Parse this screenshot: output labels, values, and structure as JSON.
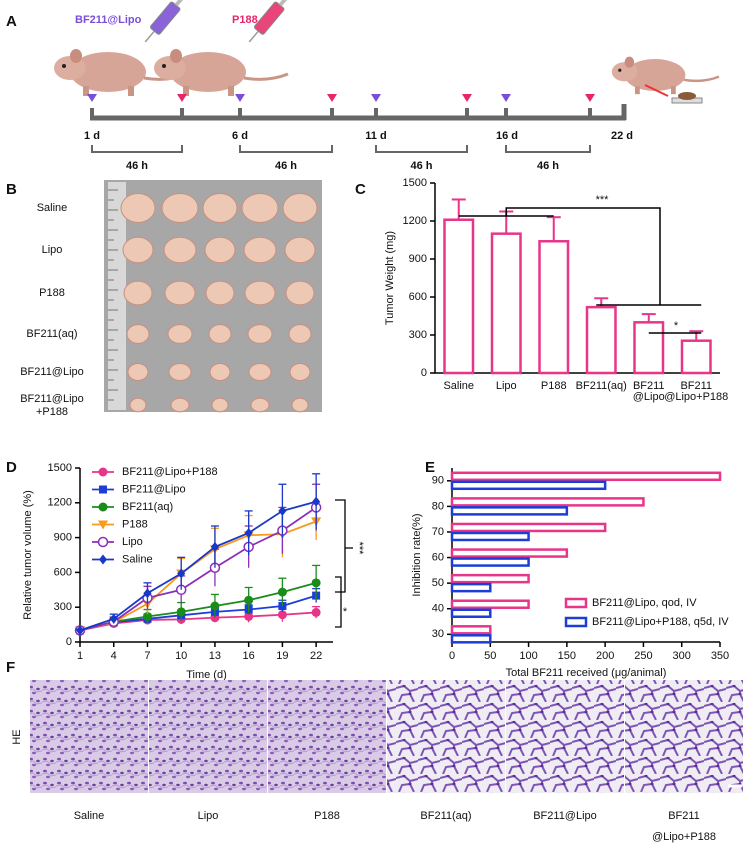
{
  "panels": [
    "A",
    "B",
    "C",
    "D",
    "E",
    "F"
  ],
  "timeline": {
    "agents": [
      "BF211@Lipo",
      "P188"
    ],
    "days": [
      "1 d",
      "6 d",
      "11 d",
      "16 d",
      "22 d"
    ],
    "intervals": [
      "46 h",
      "46 h",
      "46 h",
      "46 h"
    ]
  },
  "photo": {
    "groups": [
      "Saline",
      "Lipo",
      "P188",
      "BF211(aq)",
      "BF211@Lipo",
      [
        "BF211@Lipo",
        "+P188"
      ]
    ]
  },
  "chart_data": [
    {
      "type": "bar",
      "ylabel": "Tumor Weight (mg)",
      "categories": [
        "Saline",
        "Lipo",
        "P188",
        "BF211(aq)",
        [
          "BF211",
          "@Lipo"
        ],
        [
          "BF211",
          "@Lipo+P188"
        ]
      ],
      "values": [
        1210,
        1100,
        1040,
        520,
        400,
        255
      ],
      "errors": [
        160,
        175,
        190,
        70,
        65,
        75
      ],
      "color": "#e8358a",
      "ylim": [
        0,
        1500
      ],
      "yticks": [
        0,
        300,
        600,
        900,
        1200,
        1500
      ],
      "annotations": [
        "***",
        "*"
      ]
    },
    {
      "type": "line",
      "xlabel": "Time (d)",
      "ylabel": "Relative tumor volume (%)",
      "x": [
        1,
        4,
        7,
        10,
        13,
        16,
        19,
        22
      ],
      "xlim": [
        1,
        23.5
      ],
      "xticks": [
        1,
        4,
        7,
        10,
        13,
        16,
        19,
        22
      ],
      "ylim": [
        0,
        1500
      ],
      "yticks": [
        0,
        300,
        600,
        900,
        1200,
        1500
      ],
      "legend": "upper left",
      "annotations": [
        "***",
        "*"
      ],
      "series": [
        {
          "name": "BF211@Lipo+P188",
          "color": "#e8358a",
          "marker": "circle",
          "values": [
            100,
            160,
            190,
            195,
            210,
            220,
            235,
            255
          ],
          "errors": [
            10,
            30,
            40,
            40,
            40,
            50,
            60,
            50
          ]
        },
        {
          "name": "BF211@Lipo",
          "color": "#1b3fd6",
          "marker": "square",
          "values": [
            100,
            170,
            200,
            230,
            260,
            280,
            310,
            400
          ],
          "errors": [
            10,
            30,
            40,
            40,
            40,
            40,
            50,
            60
          ]
        },
        {
          "name": "BF211(aq)",
          "color": "#1a8c1a",
          "marker": "circle",
          "values": [
            100,
            175,
            220,
            260,
            310,
            360,
            430,
            510
          ],
          "errors": [
            10,
            40,
            60,
            80,
            100,
            110,
            120,
            150
          ]
        },
        {
          "name": "P188",
          "color": "#f79a1e",
          "marker": "triangle-down",
          "values": [
            100,
            170,
            330,
            590,
            800,
            920,
            930,
            1040
          ],
          "errors": [
            10,
            40,
            90,
            130,
            180,
            170,
            200,
            160
          ]
        },
        {
          "name": "Lipo",
          "color": "#8b2fb8",
          "marker": "circle-open",
          "values": [
            100,
            175,
            380,
            450,
            640,
            820,
            960,
            1160
          ],
          "errors": [
            10,
            40,
            100,
            120,
            160,
            180,
            200,
            200
          ]
        },
        {
          "name": "Saline",
          "color": "#1838c8",
          "marker": "diamond",
          "values": [
            100,
            200,
            420,
            590,
            820,
            940,
            1130,
            1210
          ],
          "errors": [
            10,
            40,
            90,
            140,
            180,
            190,
            230,
            240
          ]
        }
      ]
    },
    {
      "type": "hbar",
      "xlabel": "Total BF211 received (μg/animal)",
      "ylabel": "Inhibition rate(%)",
      "xlim": [
        0,
        350
      ],
      "xticks": [
        0,
        50,
        100,
        150,
        200,
        250,
        300,
        350
      ],
      "ylim": [
        27,
        95
      ],
      "yticks": [
        30,
        40,
        50,
        60,
        70,
        80,
        90
      ],
      "legend": "lower right",
      "series": [
        {
          "name": "BF211@Lipo, qod, IV",
          "color": "#e8358a",
          "values": [
            50,
            100,
            100,
            150,
            200,
            250,
            350
          ]
        },
        {
          "name": "BF211@Lipo+P188, q5d, IV",
          "color": "#1b3fd6",
          "values": [
            50,
            50,
            50,
            100,
            100,
            150,
            200
          ]
        }
      ]
    }
  ],
  "histology": {
    "stain": "HE",
    "groups": [
      "Saline",
      "Lipo",
      "P188",
      "BF211(aq)",
      "BF211@Lipo",
      [
        "BF211",
        "@Lipo+P188"
      ]
    ]
  }
}
